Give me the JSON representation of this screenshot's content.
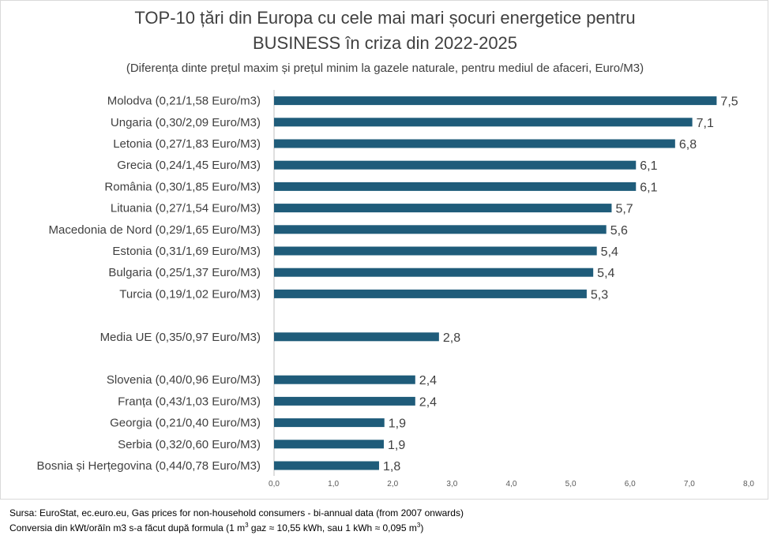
{
  "chart_data": {
    "type": "bar",
    "orientation": "horizontal",
    "title_line1": "TOP-10 țări din Europa cu cele mai mari șocuri energetice pentru",
    "title_line2": "BUSINESS în criza din 2022-2025",
    "subtitle": "(Diferența dinte prețul maxim și  prețul minim la gazele naturale, pentru mediul de afaceri, Euro/M3)",
    "categories": [
      "Molodva (0,21/1,58 Euro/m3)",
      "Ungaria (0,30/2,09 Euro/M3)",
      "Letonia (0,27/1,83 Euro/M3)",
      "Grecia (0,24/1,45 Euro/M3)",
      "România (0,30/1,85 Euro/M3)",
      "Lituania (0,27/1,54 Euro/M3)",
      "Macedonia de Nord (0,29/1,65 Euro/M3)",
      "Estonia (0,31/1,69 Euro/M3)",
      "Bulgaria (0,25/1,37 Euro/M3)",
      "Turcia (0,19/1,02 Euro/M3)",
      "",
      "Media UE (0,35/0,97 Euro/M3)",
      "",
      "Slovenia (0,40/0,96 Euro/M3)",
      "Franța (0,43/1,03 Euro/M3)",
      "Georgia (0,21/0,40 Euro/M3)",
      "Serbia (0,32/0,60 Euro/M3)",
      "Bosnia și Herțegovina (0,44/0,78 Euro/M3)"
    ],
    "values": [
      7.46,
      7.05,
      6.76,
      6.1,
      6.1,
      5.69,
      5.6,
      5.44,
      5.38,
      5.27,
      null,
      2.78,
      null,
      2.38,
      2.38,
      1.86,
      1.85,
      1.77
    ],
    "value_labels": [
      "7,5",
      "7,1",
      "6,8",
      "6,1",
      "6,1",
      "5,7",
      "5,6",
      "5,4",
      "5,4",
      "5,3",
      "",
      "2,8",
      "",
      "2,4",
      "2,4",
      "1,9",
      "1,9",
      "1,8"
    ],
    "xlim": [
      0,
      8
    ],
    "x_ticks": [
      "0,0",
      "1,0",
      "2,0",
      "3,0",
      "4,0",
      "5,0",
      "6,0",
      "7,0",
      "8,0"
    ],
    "bar_color": "#1f5c7a",
    "grid": false,
    "legend": "none"
  },
  "footer": {
    "source": "Sursa: EuroStat, ec.euro.eu, Gas prices for non-household consumers - bi-annual data (from 2007 onwards)",
    "conversion_part1": "Conversia din kWt/orăîn m3 s-a făcut după formula (1 m",
    "conversion_sup1": "3",
    "conversion_part2": " gaz ≈ 10,55 kWh, sau 1 kWh ≈ 0,095  m",
    "conversion_sup2": "3",
    "conversion_part3": ")"
  }
}
